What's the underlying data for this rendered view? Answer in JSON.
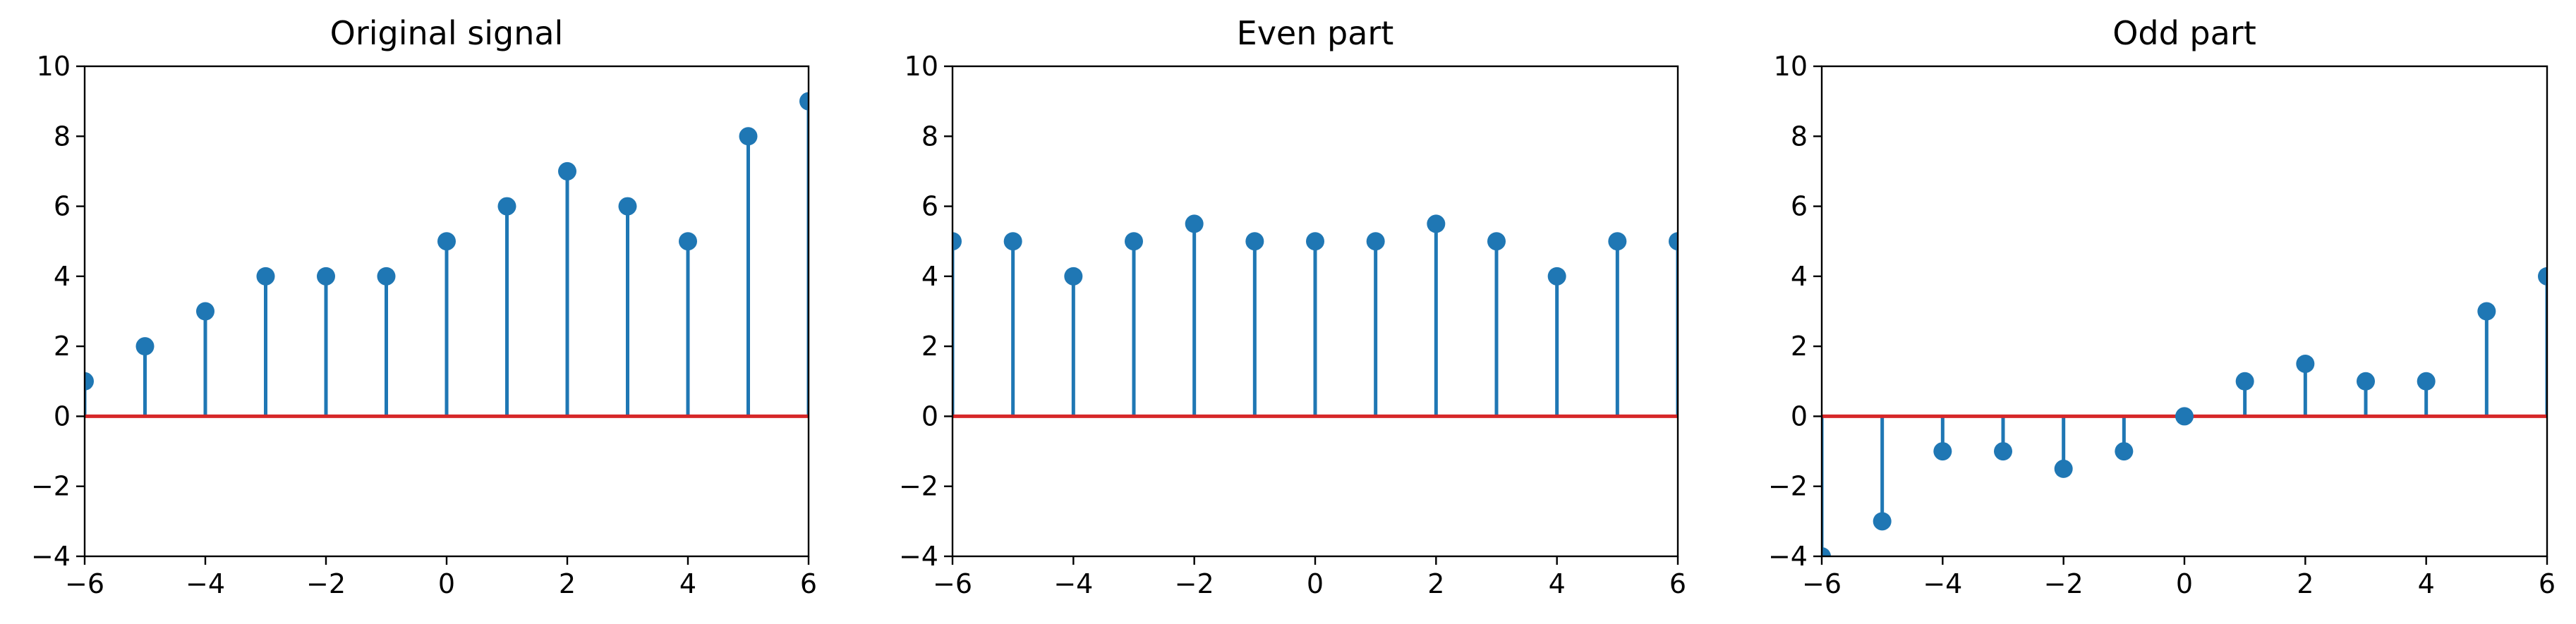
{
  "chart_data": [
    {
      "type": "stem",
      "title": "Original signal",
      "xlabel": "",
      "ylabel": "",
      "xlim": [
        -6,
        6
      ],
      "ylim": [
        -4,
        10
      ],
      "xticks": [
        "−6",
        "−4",
        "−2",
        "0",
        "2",
        "4",
        "6"
      ],
      "xtick_values": [
        -6,
        -4,
        -2,
        0,
        2,
        4,
        6
      ],
      "yticks": [
        "−4",
        "−2",
        "0",
        "2",
        "4",
        "6",
        "8",
        "10"
      ],
      "ytick_values": [
        -4,
        -2,
        0,
        2,
        4,
        6,
        8,
        10
      ],
      "x": [
        -6,
        -5,
        -4,
        -3,
        -2,
        -1,
        0,
        1,
        2,
        3,
        4,
        5,
        6
      ],
      "values": [
        1,
        2,
        3,
        4,
        4,
        4,
        5,
        6,
        7,
        6,
        5,
        8,
        9
      ],
      "grid": false,
      "colors": {
        "stem": "#1f77b4",
        "baseline": "#d62728"
      }
    },
    {
      "type": "stem",
      "title": "Even part",
      "xlabel": "",
      "ylabel": "",
      "xlim": [
        -6,
        6
      ],
      "ylim": [
        -4,
        10
      ],
      "xticks": [
        "−6",
        "−4",
        "−2",
        "0",
        "2",
        "4",
        "6"
      ],
      "xtick_values": [
        -6,
        -4,
        -2,
        0,
        2,
        4,
        6
      ],
      "yticks": [
        "−4",
        "−2",
        "0",
        "2",
        "4",
        "6",
        "8",
        "10"
      ],
      "ytick_values": [
        -4,
        -2,
        0,
        2,
        4,
        6,
        8,
        10
      ],
      "x": [
        -6,
        -5,
        -4,
        -3,
        -2,
        -1,
        0,
        1,
        2,
        3,
        4,
        5,
        6
      ],
      "values": [
        5,
        5,
        4,
        5,
        5.5,
        5,
        5,
        5,
        5.5,
        5,
        4,
        5,
        5
      ],
      "grid": false,
      "colors": {
        "stem": "#1f77b4",
        "baseline": "#d62728"
      }
    },
    {
      "type": "stem",
      "title": "Odd part",
      "xlabel": "",
      "ylabel": "",
      "xlim": [
        -6,
        6
      ],
      "ylim": [
        -4,
        10
      ],
      "xticks": [
        "−6",
        "−4",
        "−2",
        "0",
        "2",
        "4",
        "6"
      ],
      "xtick_values": [
        -6,
        -4,
        -2,
        0,
        2,
        4,
        6
      ],
      "yticks": [
        "−4",
        "−2",
        "0",
        "2",
        "4",
        "6",
        "8",
        "10"
      ],
      "ytick_values": [
        -4,
        -2,
        0,
        2,
        4,
        6,
        8,
        10
      ],
      "x": [
        -6,
        -5,
        -4,
        -3,
        -2,
        -1,
        0,
        1,
        2,
        3,
        4,
        5,
        6
      ],
      "values": [
        -4,
        -3,
        -1,
        -1,
        -1.5,
        -1,
        0,
        1,
        1.5,
        1,
        1,
        3,
        4
      ],
      "grid": false,
      "colors": {
        "stem": "#1f77b4",
        "baseline": "#d62728"
      }
    }
  ]
}
